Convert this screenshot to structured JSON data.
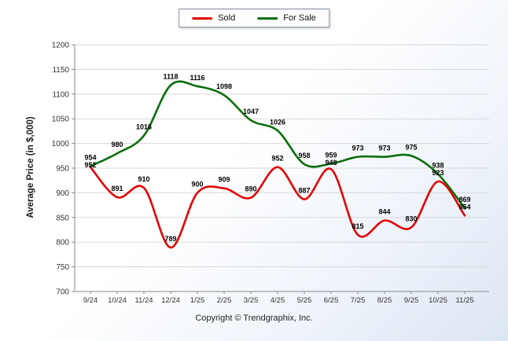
{
  "chart_data": {
    "type": "line",
    "title": "",
    "categories": [
      "9/24",
      "10/24",
      "11/24",
      "12/24",
      "1/25",
      "2/25",
      "3/25",
      "4/25",
      "5/25",
      "6/25",
      "7/25",
      "8/25",
      "9/25",
      "10/25",
      "11/25"
    ],
    "series": [
      {
        "name": "Sold",
        "color": "#e30000",
        "values": [
          952,
          891,
          910,
          789,
          900,
          909,
          890,
          952,
          887,
          948,
          815,
          844,
          830,
          923,
          854
        ]
      },
      {
        "name": "For Sale",
        "color": "#0a6e0a",
        "values": [
          954,
          980,
          1016,
          1118,
          1116,
          1098,
          1047,
          1026,
          958,
          959,
          973,
          973,
          975,
          938,
          869
        ]
      }
    ],
    "xlabel": "",
    "ylabel": "Average Price (in $,000)",
    "ylim": [
      700,
      1200
    ],
    "ytick_step": 50,
    "grid": "horizontal",
    "legend_position": "top-center",
    "colors": {
      "grid": "#d7d7d7",
      "axis": "#888888",
      "tick_text": "#333333",
      "data_label": "#000000"
    }
  },
  "footer": {
    "copyright": "Copyright © Trendgraphix, Inc."
  }
}
